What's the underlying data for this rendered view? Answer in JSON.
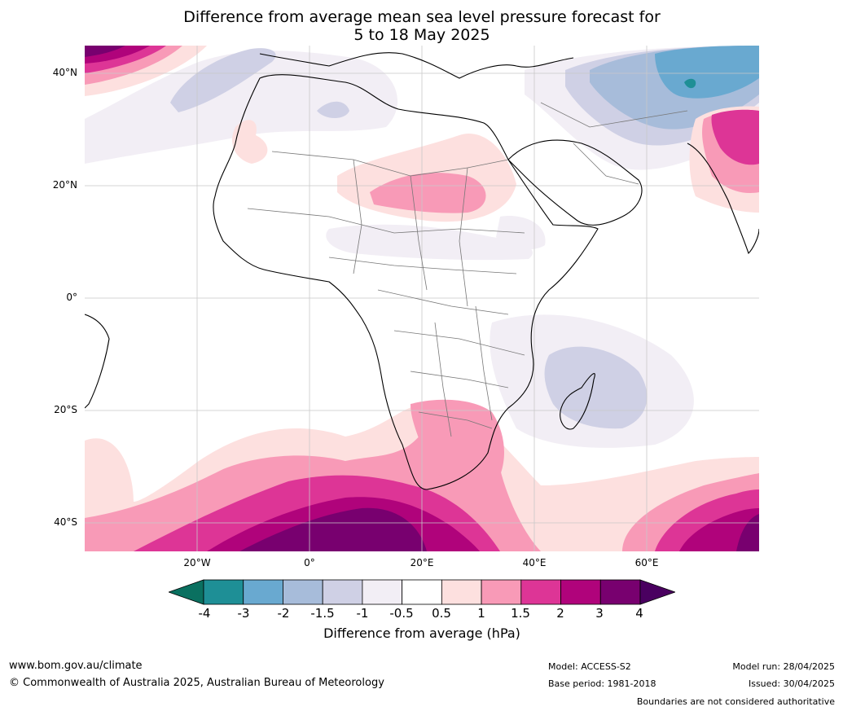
{
  "title_line1": "Difference from average mean sea level pressure forecast for",
  "title_line2": "5 to 18 May 2025",
  "lat_labels": [
    "40°N",
    "20°N",
    "0°",
    "20°S",
    "40°S"
  ],
  "lon_labels": [
    "20°W",
    "0°",
    "20°E",
    "40°E",
    "60°E"
  ],
  "colorbar": {
    "ticks": [
      "-4",
      "-3",
      "-2",
      "-1.5",
      "-1",
      "-0.5",
      "0.5",
      "1",
      "1.5",
      "2",
      "3",
      "4"
    ],
    "colors": [
      "#1e8f96",
      "#69a9d0",
      "#a7bcda",
      "#cfd0e5",
      "#f2eef5",
      "#ffffff",
      "#fde0df",
      "#f89ab7",
      "#dd3596",
      "#b0037b",
      "#78006f"
    ],
    "under_color": "#0a7060",
    "over_color": "#4a0060",
    "label": "Difference from average (hPa)"
  },
  "footer": {
    "website": "www.bom.gov.au/climate",
    "copyright": "© Commonwealth of Australia 2025, Australian Bureau of Meteorology",
    "model": "Model: ACCESS-S2",
    "base_period": "Base period: 1981-2018",
    "model_run": "Model run: 28/04/2025",
    "issued": "Issued: 30/04/2025",
    "disclaimer": "Boundaries are not considered authoritative"
  }
}
